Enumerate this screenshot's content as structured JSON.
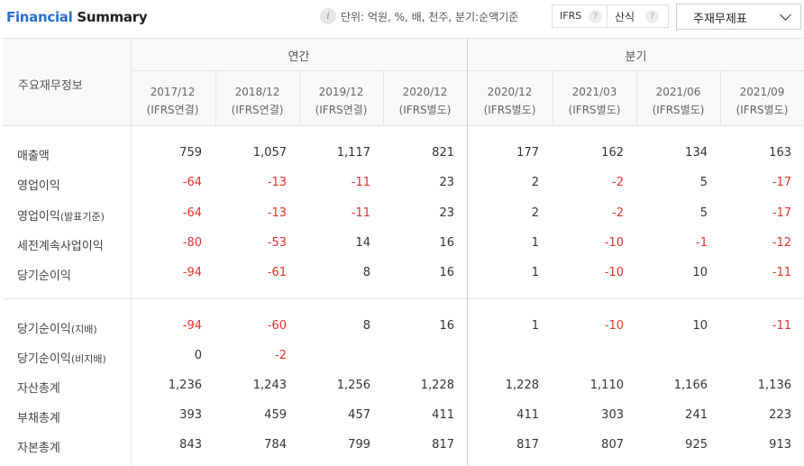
{
  "header": {
    "title_blue": "Financial",
    "title_black": " Summary",
    "info_icon": "i",
    "unit_text": "단위: 억원, %, 배, 천주, 분기:순액기준",
    "ifrs_label": "IFRS",
    "ifrs_help": "?",
    "calc_label": "산식",
    "calc_help": "?",
    "statement_select": "주재무제표"
  },
  "table": {
    "row_header": "주요재무정보",
    "groups": {
      "annual": "연간",
      "quarter": "분기"
    },
    "columns": [
      {
        "period": "2017/12",
        "basis": "(IFRS연결)"
      },
      {
        "period": "2018/12",
        "basis": "(IFRS연결)"
      },
      {
        "period": "2019/12",
        "basis": "(IFRS연결)"
      },
      {
        "period": "2020/12",
        "basis": "(IFRS별도)"
      },
      {
        "period": "2020/12",
        "basis": "(IFRS별도)"
      },
      {
        "period": "2021/03",
        "basis": "(IFRS별도)"
      },
      {
        "period": "2021/06",
        "basis": "(IFRS별도)"
      },
      {
        "period": "2021/09",
        "basis": "(IFRS별도)"
      }
    ],
    "rows": [
      {
        "label": "매출액",
        "suffix": "",
        "values": [
          "759",
          "1,057",
          "1,117",
          "821",
          "177",
          "162",
          "134",
          "163"
        ]
      },
      {
        "label": "영업이익",
        "suffix": "",
        "values": [
          "-64",
          "-13",
          "-11",
          "23",
          "2",
          "-2",
          "5",
          "-17"
        ]
      },
      {
        "label": "영업이익",
        "suffix": "(발표기준)",
        "values": [
          "-64",
          "-13",
          "-11",
          "23",
          "2",
          "-2",
          "5",
          "-17"
        ]
      },
      {
        "label": "세전계속사업이익",
        "suffix": "",
        "values": [
          "-80",
          "-53",
          "14",
          "16",
          "1",
          "-10",
          "-1",
          "-12"
        ]
      },
      {
        "label": "당기순이익",
        "suffix": "",
        "values": [
          "-94",
          "-61",
          "8",
          "16",
          "1",
          "-10",
          "10",
          "-11"
        ]
      },
      {
        "label": "당기순이익",
        "suffix": "(지배)",
        "values": [
          "-94",
          "-60",
          "8",
          "16",
          "1",
          "-10",
          "10",
          "-11"
        ]
      },
      {
        "label": "당기순이익",
        "suffix": "(비지배)",
        "values": [
          "0",
          "-2",
          "",
          "",
          "",
          "",
          "",
          ""
        ]
      },
      {
        "label": "자산총계",
        "suffix": "",
        "values": [
          "1,236",
          "1,243",
          "1,256",
          "1,228",
          "1,228",
          "1,110",
          "1,166",
          "1,136"
        ]
      },
      {
        "label": "부채총계",
        "suffix": "",
        "values": [
          "393",
          "459",
          "457",
          "411",
          "411",
          "303",
          "241",
          "223"
        ]
      },
      {
        "label": "자본총계",
        "suffix": "",
        "values": [
          "843",
          "784",
          "799",
          "817",
          "817",
          "807",
          "925",
          "913"
        ]
      }
    ]
  },
  "colors": {
    "negative": "#e4312b",
    "brand_blue": "#2a6fcc"
  }
}
